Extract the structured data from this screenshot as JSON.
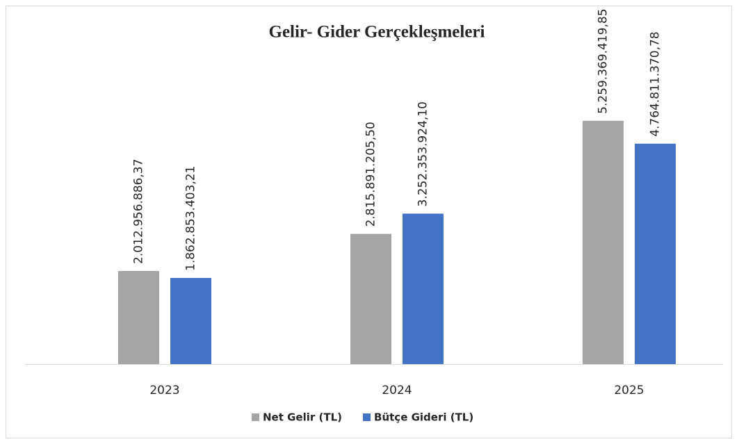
{
  "chart_data": {
    "type": "bar",
    "title": "Gelir- Gider Gerçekleşmeleri",
    "categories": [
      "2023",
      "2024",
      "2025"
    ],
    "series": [
      {
        "name": "Net Gelir (TL)",
        "color": "#a5a5a5",
        "values": [
          2012956886.37,
          2815891205.5,
          5259369419.85
        ],
        "value_labels": [
          "2.012.956.886,37",
          "2.815.891.205,50",
          "5.259.369.419,85"
        ]
      },
      {
        "name": "Bütçe Gideri (TL)",
        "color": "#4472c4",
        "values": [
          1862853403.21,
          3252353924.1,
          4764811370.78
        ],
        "value_labels": [
          "1.862.853.403,21",
          "3.252.353.924,10",
          "4.764.811.370,78"
        ]
      }
    ],
    "ylim": [
      0,
      7000000000
    ],
    "legend": "bottom"
  }
}
